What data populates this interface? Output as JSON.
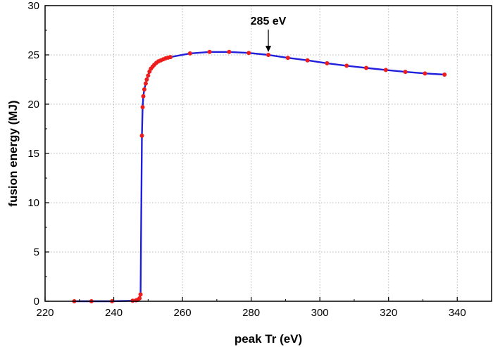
{
  "chart_data": {
    "type": "line",
    "xlabel": "peak Tr (eV)",
    "ylabel": "fusion energy (MJ)",
    "xlim": [
      220,
      350
    ],
    "ylim": [
      0,
      30
    ],
    "xticks": [
      "220",
      "240",
      "260",
      "280",
      "300",
      "320",
      "340"
    ],
    "yticks": [
      "0",
      "5",
      "10",
      "15",
      "20",
      "25",
      "30"
    ],
    "grid": true,
    "line_color": "#1f1fdd",
    "marker_color": "#ee1c1c",
    "series": [
      {
        "x": [
          228.5,
          233.5,
          239.5,
          245.5,
          246.5,
          247.0,
          247.5,
          247.8,
          248.2,
          248.4,
          248.6,
          248.9,
          249.3,
          249.6,
          250.0,
          250.4,
          250.8,
          251.3,
          251.8,
          252.4,
          253.0,
          253.7,
          254.4,
          255.1,
          255.8,
          256.5,
          262.2,
          267.9,
          273.6,
          279.3,
          285.0,
          290.7,
          296.4,
          302.1,
          307.8,
          313.5,
          319.2,
          324.9,
          330.6,
          336.3
        ],
        "y": [
          0.0,
          0.0,
          0.0,
          0.05,
          0.1,
          0.15,
          0.3,
          0.7,
          16.8,
          19.7,
          20.8,
          21.5,
          22.1,
          22.5,
          22.9,
          23.3,
          23.6,
          23.8,
          24.0,
          24.2,
          24.35,
          24.45,
          24.55,
          24.65,
          24.72,
          24.78,
          25.15,
          25.3,
          25.3,
          25.2,
          25.0,
          24.7,
          24.45,
          24.15,
          23.9,
          23.68,
          23.47,
          23.28,
          23.12,
          23.0
        ]
      }
    ],
    "annotations": [
      {
        "text": "285 eV",
        "x": 285,
        "y": 25.0
      }
    ]
  }
}
